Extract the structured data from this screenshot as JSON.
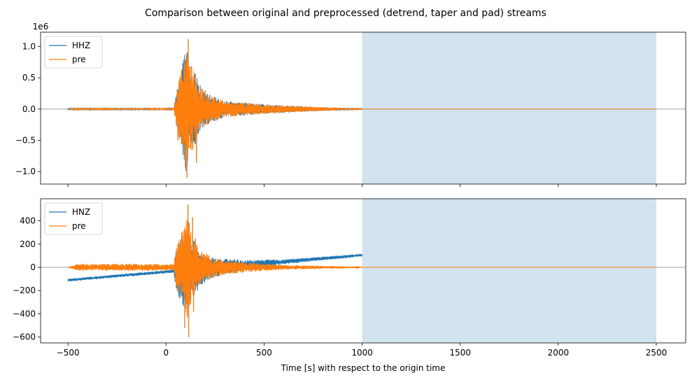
{
  "chart_data": {
    "type": "line",
    "title": "Comparison between original and preprocessed (detrend, taper and pad) streams",
    "xlabel": "Time [s] with respect to the origin time",
    "xlim": [
      -640,
      2650
    ],
    "x_ticks": [
      -500,
      0,
      500,
      1000,
      1500,
      2000,
      2500
    ],
    "x_tick_labels": [
      "−500",
      "0",
      "500",
      "1000",
      "1500",
      "2000",
      "2500"
    ],
    "colors": {
      "original": "#1f77b4",
      "pre": "#ff7f0e",
      "shade": "#d1e3ef",
      "zero_line": "#808080"
    },
    "panels": [
      {
        "ylim": [
          -1200000,
          1230000
        ],
        "y_ticks": [
          -1000000,
          -500000,
          0,
          500000,
          1000000
        ],
        "y_tick_labels": [
          "−1.0",
          "−0.5",
          "0.0",
          "0.5",
          "1.0"
        ],
        "offset_label": "1e6",
        "shaded_region": [
          1000,
          2500
        ],
        "zero_line": 0,
        "legend": {
          "location": "upper-left",
          "entries": [
            "HHZ",
            "pre"
          ]
        },
        "series": [
          {
            "name": "HHZ",
            "role": "original",
            "x_range": [
              -500,
              1000
            ],
            "envelope": [
              [
                -500,
                8000
              ],
              [
                40,
                8000
              ],
              [
                50,
                250000
              ],
              [
                80,
                650000
              ],
              [
                105,
                1050000
              ],
              [
                115,
                700000
              ],
              [
                140,
                650000
              ],
              [
                170,
                400000
              ],
              [
                210,
                250000
              ],
              [
                300,
                130000
              ],
              [
                450,
                90000
              ],
              [
                600,
                60000
              ],
              [
                800,
                30000
              ],
              [
                1000,
                15000
              ]
            ],
            "peaks": [
              [
                113,
                1120000
              ],
              [
                107,
                -1100000
              ],
              [
                155,
                -860000
              ],
              [
                72,
                520000
              ],
              [
                60,
                -500000
              ],
              [
                130,
                680000
              ],
              [
                200,
                300000
              ]
            ]
          },
          {
            "name": "pre",
            "role": "preprocessed",
            "x_range": [
              -500,
              2500
            ],
            "envelope": [
              [
                -500,
                0
              ],
              [
                -450,
                8000
              ],
              [
                40,
                8000
              ],
              [
                50,
                250000
              ],
              [
                80,
                650000
              ],
              [
                105,
                1050000
              ],
              [
                115,
                700000
              ],
              [
                140,
                650000
              ],
              [
                170,
                400000
              ],
              [
                210,
                250000
              ],
              [
                300,
                130000
              ],
              [
                450,
                90000
              ],
              [
                600,
                60000
              ],
              [
                800,
                30000
              ],
              [
                950,
                12000
              ],
              [
                1000,
                0
              ],
              [
                2500,
                0
              ]
            ],
            "peaks": [
              [
                113,
                1120000
              ],
              [
                107,
                -1100000
              ],
              [
                155,
                -860000
              ],
              [
                72,
                520000
              ],
              [
                60,
                -500000
              ],
              [
                130,
                680000
              ],
              [
                200,
                300000
              ]
            ]
          }
        ]
      },
      {
        "ylim": [
          -650,
          590
        ],
        "y_ticks": [
          -600,
          -400,
          -200,
          0,
          200,
          400
        ],
        "y_tick_labels": [
          "−600",
          "−400",
          "−200",
          "0",
          "200",
          "400"
        ],
        "offset_label": "",
        "shaded_region": [
          1000,
          2500
        ],
        "zero_line": 0,
        "legend": {
          "location": "upper-left",
          "entries": [
            "HNZ",
            "pre"
          ]
        },
        "series": [
          {
            "name": "HNZ",
            "role": "original",
            "x_range": [
              -500,
              1000
            ],
            "trend": [
              [
                -500,
                -110
              ],
              [
                0,
                -38
              ],
              [
                1000,
                105
              ]
            ],
            "envelope": [
              [
                -500,
                12
              ],
              [
                40,
                14
              ],
              [
                50,
                180
              ],
              [
                80,
                300
              ],
              [
                110,
                460
              ],
              [
                130,
                300
              ],
              [
                170,
                150
              ],
              [
                250,
                80
              ],
              [
                400,
                45
              ],
              [
                600,
                20
              ],
              [
                1000,
                12
              ]
            ],
            "peaks": [
              [
                112,
                540
              ],
              [
                115,
                -600
              ],
              [
                95,
                -520
              ],
              [
                135,
                430
              ],
              [
                140,
                -380
              ],
              [
                150,
                250
              ],
              [
                80,
                300
              ]
            ]
          },
          {
            "name": "pre",
            "role": "preprocessed",
            "x_range": [
              -500,
              2500
            ],
            "trend": [
              [
                -500,
                0
              ],
              [
                2500,
                0
              ]
            ],
            "envelope": [
              [
                -500,
                0
              ],
              [
                -450,
                30
              ],
              [
                40,
                30
              ],
              [
                50,
                180
              ],
              [
                80,
                300
              ],
              [
                110,
                460
              ],
              [
                130,
                300
              ],
              [
                170,
                150
              ],
              [
                250,
                80
              ],
              [
                400,
                45
              ],
              [
                600,
                20
              ],
              [
                950,
                8
              ],
              [
                1000,
                0
              ],
              [
                2500,
                0
              ]
            ],
            "peaks": [
              [
                112,
                540
              ],
              [
                115,
                -600
              ],
              [
                95,
                -520
              ],
              [
                135,
                430
              ],
              [
                140,
                -380
              ],
              [
                150,
                250
              ],
              [
                80,
                300
              ]
            ]
          }
        ]
      }
    ]
  }
}
